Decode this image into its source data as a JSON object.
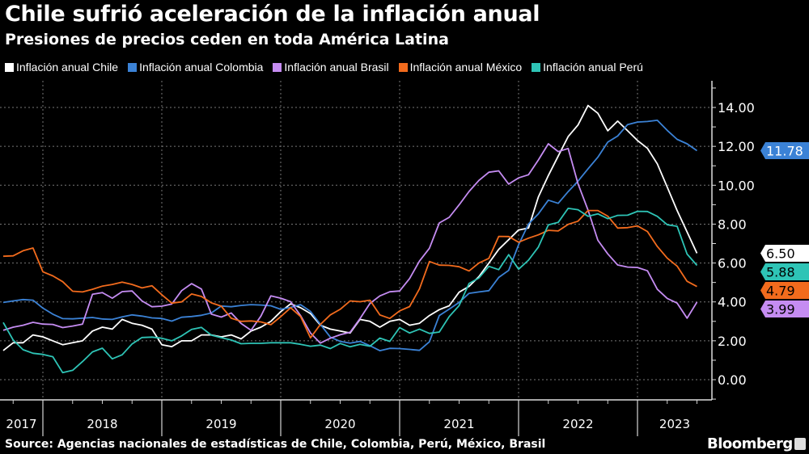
{
  "title": "Chile sufrió aceleración de la inflación anual",
  "subtitle": "Presiones de precios ceden en toda América Latina",
  "source": "Source: Agencias nacionales de estadísticas de Chile, Colombia, Perú, México, Brasil",
  "brand": "Bloomberg",
  "chart_data": {
    "type": "line",
    "title": "Chile sufrió aceleración de la inflación anual",
    "subtitle": "Presiones de precios ceden en toda América Latina",
    "xlabel": "",
    "ylabel": "",
    "ylim": [
      -1,
      15
    ],
    "y_ticks": [
      "0.00",
      "2.00",
      "4.00",
      "6.00",
      "8.00",
      "10.00",
      "12.00",
      "14.00"
    ],
    "x_tick_labels": [
      "2017",
      "2018",
      "2019",
      "2020",
      "2021",
      "2022",
      "2023"
    ],
    "grid": true,
    "legend": "top",
    "x": [
      "2017-09",
      "2017-10",
      "2017-11",
      "2017-12",
      "2018-01",
      "2018-02",
      "2018-03",
      "2018-04",
      "2018-05",
      "2018-06",
      "2018-07",
      "2018-08",
      "2018-09",
      "2018-10",
      "2018-11",
      "2018-12",
      "2019-01",
      "2019-02",
      "2019-03",
      "2019-04",
      "2019-05",
      "2019-06",
      "2019-07",
      "2019-08",
      "2019-09",
      "2019-10",
      "2019-11",
      "2019-12",
      "2020-01",
      "2020-02",
      "2020-03",
      "2020-04",
      "2020-05",
      "2020-06",
      "2020-07",
      "2020-08",
      "2020-09",
      "2020-10",
      "2020-11",
      "2020-12",
      "2021-01",
      "2021-02",
      "2021-03",
      "2021-04",
      "2021-05",
      "2021-06",
      "2021-07",
      "2021-08",
      "2021-09",
      "2021-10",
      "2021-11",
      "2021-12",
      "2022-01",
      "2022-02",
      "2022-03",
      "2022-04",
      "2022-05",
      "2022-06",
      "2022-07",
      "2022-08",
      "2022-09",
      "2022-10",
      "2022-11",
      "2022-12",
      "2023-01",
      "2023-02",
      "2023-03",
      "2023-04",
      "2023-05",
      "2023-06",
      "2023-07"
    ],
    "series": [
      {
        "name": "Inflación anual Chile",
        "color": "#ffffff",
        "label_text": "#000000",
        "last_label": "6.50",
        "values": [
          1.5,
          1.9,
          1.9,
          2.3,
          2.2,
          2.0,
          1.8,
          1.9,
          2.0,
          2.5,
          2.7,
          2.6,
          3.1,
          2.9,
          2.8,
          2.6,
          1.8,
          1.7,
          2.0,
          2.0,
          2.3,
          2.3,
          2.2,
          2.3,
          2.1,
          2.5,
          2.7,
          3.0,
          3.5,
          3.9,
          3.7,
          3.4,
          2.8,
          2.6,
          2.5,
          2.4,
          3.1,
          3.0,
          2.7,
          3.0,
          3.1,
          2.8,
          2.9,
          3.3,
          3.6,
          3.8,
          4.5,
          4.8,
          5.3,
          6.0,
          6.7,
          7.2,
          7.7,
          7.8,
          9.4,
          10.5,
          11.5,
          12.5,
          13.1,
          14.1,
          13.7,
          12.8,
          13.3,
          12.8,
          12.3,
          11.9,
          11.1,
          9.9,
          8.7,
          7.6,
          6.5
        ]
      },
      {
        "name": "Inflación anual Colombia",
        "color": "#3b82d6",
        "label_text": "#ffffff",
        "last_label": "11.78",
        "values": [
          3.97,
          4.05,
          4.12,
          4.09,
          3.68,
          3.37,
          3.14,
          3.13,
          3.16,
          3.2,
          3.12,
          3.1,
          3.23,
          3.33,
          3.27,
          3.18,
          3.15,
          3.01,
          3.21,
          3.25,
          3.31,
          3.43,
          3.79,
          3.75,
          3.82,
          3.86,
          3.84,
          3.8,
          3.62,
          3.72,
          3.86,
          3.51,
          2.85,
          2.19,
          1.97,
          1.88,
          1.97,
          1.75,
          1.49,
          1.61,
          1.6,
          1.56,
          1.51,
          1.95,
          3.3,
          3.63,
          3.97,
          4.44,
          4.51,
          4.58,
          5.26,
          5.62,
          6.94,
          8.01,
          8.53,
          9.23,
          9.07,
          9.67,
          10.21,
          10.84,
          11.44,
          12.22,
          12.53,
          13.12,
          13.25,
          13.28,
          13.34,
          12.82,
          12.36,
          12.13,
          11.78
        ]
      },
      {
        "name": "Inflación anual Brasil",
        "color": "#c58cf2",
        "label_text": "#000000",
        "last_label": "3.99",
        "values": [
          2.54,
          2.7,
          2.8,
          2.95,
          2.86,
          2.84,
          2.68,
          2.76,
          2.86,
          4.39,
          4.48,
          4.19,
          4.53,
          4.56,
          4.05,
          3.75,
          3.78,
          3.89,
          4.58,
          4.94,
          4.66,
          3.37,
          3.22,
          3.43,
          2.89,
          2.54,
          3.27,
          4.31,
          4.19,
          4.01,
          3.3,
          2.4,
          1.88,
          2.13,
          2.31,
          2.44,
          3.14,
          3.92,
          4.31,
          4.52,
          4.56,
          5.2,
          6.1,
          6.76,
          8.06,
          8.35,
          8.99,
          9.68,
          10.25,
          10.67,
          10.74,
          10.06,
          10.38,
          10.54,
          11.3,
          12.13,
          11.73,
          11.89,
          10.07,
          8.73,
          7.17,
          6.47,
          5.9,
          5.79,
          5.77,
          5.6,
          4.65,
          4.18,
          3.94,
          3.16,
          3.99
        ]
      },
      {
        "name": "Inflación anual México",
        "color": "#f26b1d",
        "label_text": "#000000",
        "last_label": "4.79",
        "values": [
          6.35,
          6.37,
          6.63,
          6.77,
          5.55,
          5.34,
          5.04,
          4.55,
          4.51,
          4.65,
          4.81,
          4.9,
          5.02,
          4.9,
          4.72,
          4.83,
          4.37,
          3.94,
          4.0,
          4.41,
          4.28,
          3.95,
          3.78,
          3.16,
          3.0,
          3.02,
          2.97,
          2.83,
          3.24,
          3.7,
          3.25,
          2.15,
          2.84,
          3.33,
          3.62,
          4.05,
          4.01,
          4.09,
          3.33,
          3.15,
          3.54,
          3.76,
          4.67,
          6.08,
          5.89,
          5.88,
          5.81,
          5.59,
          6.0,
          6.24,
          7.37,
          7.36,
          7.07,
          7.28,
          7.45,
          7.68,
          7.65,
          7.99,
          8.15,
          8.7,
          8.7,
          8.41,
          7.8,
          7.82,
          7.91,
          7.62,
          6.85,
          6.25,
          5.84,
          5.06,
          4.79
        ]
      },
      {
        "name": "Inflación anual Perú",
        "color": "#2ec4b6",
        "label_text": "#000000",
        "last_label": "5.88",
        "values": [
          2.94,
          2.04,
          1.54,
          1.36,
          1.3,
          1.18,
          0.36,
          0.48,
          0.93,
          1.43,
          1.62,
          1.07,
          1.28,
          1.84,
          2.17,
          2.19,
          2.13,
          2.0,
          2.25,
          2.59,
          2.69,
          2.29,
          2.16,
          2.04,
          1.85,
          1.87,
          1.87,
          1.9,
          1.9,
          1.9,
          1.82,
          1.72,
          1.78,
          1.6,
          1.86,
          1.69,
          1.82,
          1.72,
          2.14,
          1.97,
          2.68,
          2.4,
          2.6,
          2.38,
          2.45,
          3.25,
          3.81,
          4.95,
          5.23,
          5.83,
          5.66,
          6.43,
          5.68,
          6.15,
          6.82,
          7.96,
          8.09,
          8.81,
          8.74,
          8.4,
          8.53,
          8.28,
          8.45,
          8.46,
          8.66,
          8.65,
          8.4,
          7.97,
          7.89,
          6.46,
          5.88
        ]
      }
    ]
  }
}
